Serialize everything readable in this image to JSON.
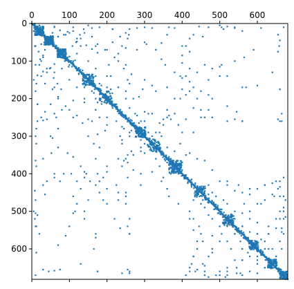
{
  "colors": {
    "marker": "#1f77b4",
    "frame": "#000000",
    "background": "#ffffff"
  },
  "chart_data": {
    "type": "scatter",
    "subtype": "sparsity-pattern",
    "title": "",
    "xlabel": "",
    "ylabel": "",
    "xlim": [
      0,
      681
    ],
    "ylim": [
      681,
      0
    ],
    "x_axis_position": "top",
    "grid": false,
    "legend": "none",
    "x_ticks": [
      0,
      100,
      200,
      300,
      400,
      500,
      600
    ],
    "y_ticks": [
      0,
      100,
      200,
      300,
      400,
      500,
      600
    ],
    "diagonal": {
      "from": 0,
      "to": 681,
      "band_halfwidth": 4
    },
    "dense_blocks": [
      {
        "center": [
          20,
          20
        ],
        "spread": 12,
        "count": 60
      },
      {
        "center": [
          45,
          45
        ],
        "spread": 12,
        "count": 60
      },
      {
        "center": [
          80,
          80
        ],
        "spread": 12,
        "count": 70
      },
      {
        "center": [
          150,
          150
        ],
        "spread": 15,
        "count": 40
      },
      {
        "center": [
          200,
          195
        ],
        "spread": 15,
        "count": 35
      },
      {
        "center": [
          290,
          290
        ],
        "spread": 14,
        "count": 45
      },
      {
        "center": [
          330,
          320
        ],
        "spread": 14,
        "count": 30
      },
      {
        "center": [
          380,
          385
        ],
        "spread": 15,
        "count": 55
      },
      {
        "center": [
          450,
          445
        ],
        "spread": 12,
        "count": 30
      },
      {
        "center": [
          520,
          525
        ],
        "spread": 12,
        "count": 40
      },
      {
        "center": [
          590,
          590
        ],
        "spread": 12,
        "count": 45
      },
      {
        "center": [
          640,
          640
        ],
        "spread": 12,
        "count": 45
      },
      {
        "center": [
          670,
          670
        ],
        "spread": 10,
        "count": 40
      }
    ],
    "points": [
      [
        5,
        20
      ],
      [
        8,
        60
      ],
      [
        10,
        110
      ],
      [
        12,
        160
      ],
      [
        15,
        215
      ],
      [
        30,
        258
      ],
      [
        40,
        255
      ],
      [
        60,
        10
      ],
      [
        70,
        35
      ],
      [
        85,
        30
      ],
      [
        100,
        25
      ],
      [
        120,
        40
      ],
      [
        140,
        25
      ],
      [
        150,
        5
      ],
      [
        170,
        60
      ],
      [
        180,
        10
      ],
      [
        215,
        15
      ],
      [
        235,
        35
      ],
      [
        260,
        15
      ],
      [
        280,
        12
      ],
      [
        300,
        10
      ],
      [
        320,
        12
      ],
      [
        360,
        30
      ],
      [
        400,
        60
      ],
      [
        420,
        75
      ],
      [
        455,
        35
      ],
      [
        460,
        110
      ],
      [
        505,
        10
      ],
      [
        510,
        15
      ],
      [
        540,
        10
      ],
      [
        560,
        20
      ],
      [
        610,
        12
      ],
      [
        670,
        10
      ],
      [
        200,
        70
      ],
      [
        230,
        80
      ],
      [
        280,
        70
      ],
      [
        250,
        110
      ],
      [
        300,
        150
      ],
      [
        320,
        165
      ],
      [
        330,
        180
      ],
      [
        360,
        170
      ],
      [
        380,
        200
      ],
      [
        420,
        180
      ],
      [
        430,
        225
      ],
      [
        450,
        230
      ],
      [
        460,
        250
      ],
      [
        480,
        200
      ],
      [
        500,
        140
      ],
      [
        505,
        110
      ],
      [
        520,
        140
      ],
      [
        560,
        170
      ],
      [
        570,
        170
      ],
      [
        600,
        165
      ],
      [
        640,
        130
      ],
      [
        660,
        175
      ],
      [
        665,
        240
      ],
      [
        660,
        260
      ],
      [
        560,
        260
      ],
      [
        540,
        255
      ],
      [
        520,
        260
      ],
      [
        390,
        270
      ],
      [
        400,
        290
      ],
      [
        410,
        255
      ],
      [
        450,
        250
      ],
      [
        430,
        290
      ],
      [
        395,
        320
      ],
      [
        380,
        340
      ],
      [
        360,
        330
      ],
      [
        345,
        300
      ],
      [
        330,
        290
      ],
      [
        310,
        310
      ],
      [
        290,
        340
      ],
      [
        270,
        350
      ],
      [
        250,
        360
      ],
      [
        255,
        370
      ],
      [
        240,
        380
      ],
      [
        200,
        395
      ],
      [
        175,
        400
      ],
      [
        155,
        420
      ],
      [
        140,
        410
      ],
      [
        130,
        440
      ],
      [
        150,
        470
      ],
      [
        120,
        480
      ],
      [
        115,
        500
      ],
      [
        100,
        540
      ],
      [
        90,
        565
      ],
      [
        70,
        590
      ],
      [
        12,
        540
      ],
      [
        8,
        520
      ],
      [
        5,
        500
      ],
      [
        10,
        470
      ],
      [
        8,
        445
      ],
      [
        12,
        380
      ],
      [
        10,
        365
      ],
      [
        30,
        430
      ],
      [
        40,
        420
      ],
      [
        60,
        410
      ],
      [
        85,
        400
      ],
      [
        105,
        400
      ],
      [
        120,
        420
      ],
      [
        145,
        400
      ],
      [
        170,
        430
      ],
      [
        180,
        450
      ],
      [
        190,
        470
      ],
      [
        220,
        520
      ],
      [
        235,
        545
      ],
      [
        260,
        560
      ],
      [
        230,
        360
      ],
      [
        240,
        320
      ],
      [
        260,
        290
      ],
      [
        200,
        270
      ],
      [
        180,
        250
      ],
      [
        170,
        230
      ],
      [
        160,
        260
      ],
      [
        140,
        200
      ],
      [
        110,
        205
      ],
      [
        100,
        230
      ],
      [
        90,
        220
      ],
      [
        70,
        195
      ],
      [
        50,
        215
      ],
      [
        60,
        240
      ],
      [
        25,
        250
      ],
      [
        35,
        160
      ],
      [
        40,
        130
      ],
      [
        20,
        110
      ],
      [
        30,
        90
      ],
      [
        150,
        100
      ],
      [
        120,
        80
      ],
      [
        130,
        60
      ],
      [
        170,
        120
      ],
      [
        210,
        140
      ],
      [
        230,
        170
      ],
      [
        250,
        200
      ],
      [
        200,
        170
      ],
      [
        185,
        165
      ],
      [
        175,
        210
      ],
      [
        160,
        180
      ],
      [
        140,
        170
      ],
      [
        260,
        225
      ],
      [
        280,
        245
      ],
      [
        300,
        235
      ],
      [
        310,
        240
      ],
      [
        340,
        265
      ],
      [
        350,
        255
      ],
      [
        365,
        245
      ],
      [
        300,
        260
      ],
      [
        285,
        265
      ],
      [
        310,
        290
      ],
      [
        320,
        300
      ],
      [
        340,
        330
      ],
      [
        350,
        350
      ],
      [
        370,
        360
      ],
      [
        400,
        370
      ],
      [
        410,
        350
      ],
      [
        420,
        345
      ],
      [
        440,
        360
      ],
      [
        460,
        365
      ],
      [
        480,
        390
      ],
      [
        500,
        420
      ],
      [
        520,
        430
      ],
      [
        540,
        445
      ],
      [
        560,
        450
      ],
      [
        580,
        455
      ],
      [
        600,
        440
      ],
      [
        620,
        430
      ],
      [
        640,
        425
      ],
      [
        650,
        420
      ],
      [
        660,
        435
      ],
      [
        670,
        460
      ],
      [
        640,
        455
      ],
      [
        620,
        470
      ],
      [
        600,
        480
      ],
      [
        580,
        500
      ],
      [
        560,
        505
      ],
      [
        540,
        520
      ],
      [
        520,
        480
      ],
      [
        510,
        470
      ],
      [
        490,
        460
      ],
      [
        470,
        470
      ],
      [
        450,
        480
      ],
      [
        430,
        470
      ],
      [
        420,
        520
      ],
      [
        430,
        550
      ],
      [
        440,
        580
      ],
      [
        430,
        620
      ],
      [
        420,
        660
      ],
      [
        410,
        670
      ],
      [
        440,
        655
      ],
      [
        460,
        645
      ],
      [
        480,
        610
      ],
      [
        480,
        565
      ],
      [
        500,
        540
      ],
      [
        520,
        580
      ],
      [
        530,
        600
      ],
      [
        540,
        560
      ],
      [
        560,
        540
      ],
      [
        580,
        555
      ],
      [
        600,
        560
      ],
      [
        610,
        575
      ],
      [
        620,
        600
      ],
      [
        640,
        600
      ],
      [
        660,
        580
      ],
      [
        665,
        555
      ],
      [
        675,
        515
      ],
      [
        670,
        500
      ],
      [
        660,
        520
      ],
      [
        650,
        545
      ],
      [
        630,
        560
      ],
      [
        560,
        600
      ],
      [
        540,
        630
      ],
      [
        520,
        650
      ],
      [
        500,
        660
      ],
      [
        490,
        670
      ],
      [
        470,
        675
      ],
      [
        460,
        660
      ],
      [
        520,
        670
      ],
      [
        545,
        665
      ],
      [
        560,
        670
      ],
      [
        600,
        665
      ],
      [
        620,
        650
      ],
      [
        600,
        630
      ],
      [
        580,
        620
      ],
      [
        560,
        630
      ],
      [
        650,
        620
      ],
      [
        640,
        650
      ],
      [
        600,
        600
      ],
      [
        30,
        655
      ],
      [
        45,
        660
      ],
      [
        60,
        658
      ],
      [
        75,
        655
      ],
      [
        175,
        660
      ],
      [
        255,
        655
      ],
      [
        260,
        665
      ],
      [
        55,
        25
      ],
      [
        65,
        65
      ],
      [
        95,
        90
      ],
      [
        110,
        100
      ],
      [
        125,
        120
      ],
      [
        135,
        125
      ],
      [
        160,
        140
      ],
      [
        180,
        180
      ],
      [
        195,
        205
      ],
      [
        215,
        220
      ],
      [
        225,
        215
      ],
      [
        240,
        235
      ],
      [
        250,
        245
      ],
      [
        265,
        270
      ],
      [
        275,
        280
      ],
      [
        300,
        300
      ],
      [
        315,
        320
      ],
      [
        325,
        335
      ],
      [
        345,
        350
      ],
      [
        355,
        365
      ],
      [
        365,
        375
      ],
      [
        390,
        400
      ],
      [
        405,
        410
      ],
      [
        415,
        425
      ],
      [
        425,
        435
      ],
      [
        440,
        445
      ],
      [
        470,
        455
      ],
      [
        485,
        495
      ],
      [
        495,
        505
      ],
      [
        530,
        535
      ],
      [
        550,
        545
      ],
      [
        570,
        575
      ],
      [
        610,
        615
      ],
      [
        625,
        630
      ],
      [
        655,
        660
      ],
      [
        18,
        75
      ],
      [
        22,
        95
      ],
      [
        48,
        120
      ],
      [
        58,
        145
      ],
      [
        68,
        160
      ],
      [
        78,
        175
      ],
      [
        88,
        100
      ],
      [
        98,
        115
      ],
      [
        108,
        60
      ],
      [
        118,
        50
      ],
      [
        128,
        30
      ],
      [
        138,
        15
      ],
      [
        55,
        175
      ],
      [
        65,
        250
      ],
      [
        52,
        345
      ],
      [
        50,
        300
      ],
      [
        275,
        240
      ],
      [
        285,
        195
      ],
      [
        295,
        175
      ],
      [
        255,
        150
      ],
      [
        265,
        135
      ],
      [
        245,
        120
      ],
      [
        480,
        250
      ],
      [
        470,
        230
      ],
      [
        440,
        200
      ],
      [
        410,
        190
      ],
      [
        395,
        140
      ],
      [
        380,
        130
      ],
      [
        355,
        110
      ],
      [
        345,
        95
      ],
      [
        330,
        70
      ],
      [
        305,
        55
      ]
    ]
  }
}
